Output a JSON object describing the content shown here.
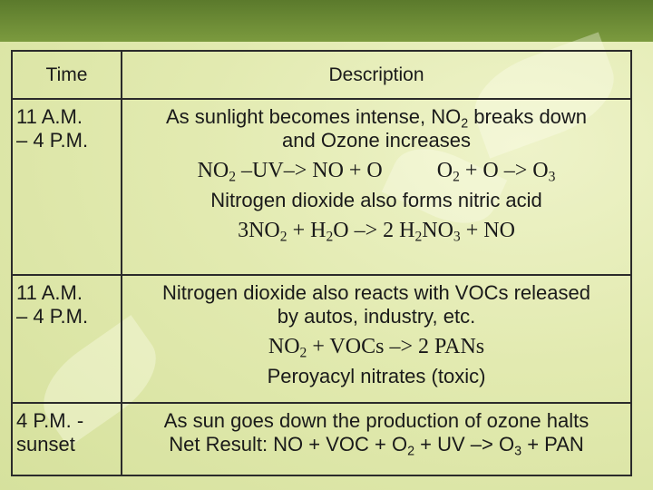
{
  "table": {
    "header": [
      "Time",
      "Description"
    ],
    "rows": [
      {
        "time": [
          "11 A.M.",
          "– 4 P.M."
        ],
        "description": [
          [
            "As sunlight becomes intense, NO",
            "2",
            " breaks down"
          ],
          [
            "and Ozone increases"
          ],
          [
            "NO",
            "2",
            " –UV–> NO + O          O",
            "2",
            " + O –> O",
            "3"
          ],
          [
            "Nitrogen dioxide also forms nitric acid"
          ],
          [
            "3NO",
            "2",
            " + H",
            "2",
            "O –> 2 H",
            "2",
            "NO",
            "3",
            " + NO"
          ]
        ]
      },
      {
        "time": [
          "11 A.M.",
          "– 4 P.M."
        ],
        "description": [
          [
            "Nitrogen dioxide also reacts with VOCs released"
          ],
          [
            "by autos, industry, etc."
          ],
          [
            "NO",
            "2",
            " + VOCs –> 2 PANs"
          ],
          [
            "Peroyacyl nitrates (toxic)"
          ]
        ]
      },
      {
        "time": [
          "4 P.M. -",
          "sunset"
        ],
        "description": [
          [
            "As sun goes down the production of ozone halts"
          ],
          [
            "Net Result: NO + VOC + O",
            "2",
            " + UV –> O",
            "3",
            " + PAN"
          ]
        ]
      }
    ]
  }
}
